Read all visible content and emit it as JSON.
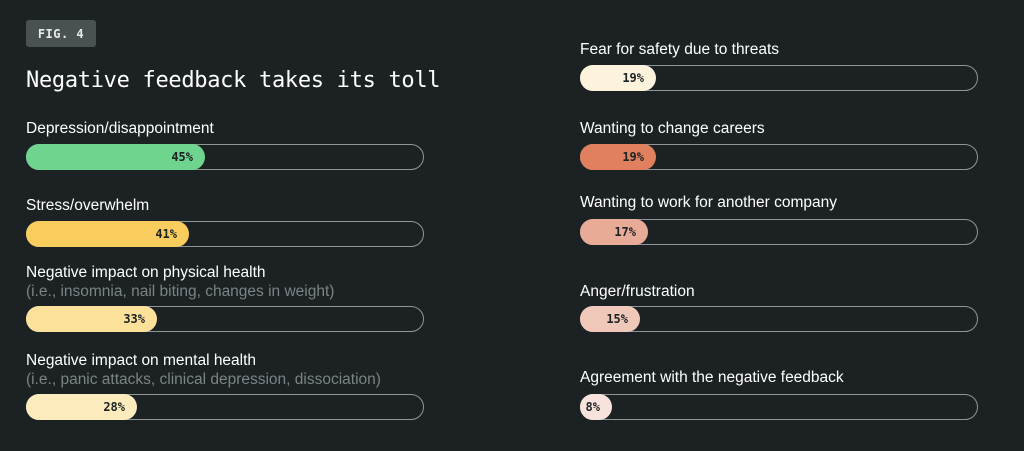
{
  "figure_label": "FIG. 4",
  "chart_data": {
    "type": "bar",
    "title": "Negative feedback takes its toll",
    "xlim": [
      0,
      100
    ],
    "unit": "%",
    "items": [
      {
        "label": "Depression/disappointment",
        "sublabel": "",
        "value": 45,
        "value_label": "45%",
        "color": "#6fd48e"
      },
      {
        "label": "Stress/overwhelm",
        "sublabel": "",
        "value": 41,
        "value_label": "41%",
        "color": "#f8cd5e"
      },
      {
        "label": "Negative impact on physical health",
        "sublabel": "(i.e., insomnia, nail biting, changes in weight)",
        "value": 33,
        "value_label": "33%",
        "color": "#fbe19a"
      },
      {
        "label": "Negative impact on mental health",
        "sublabel": "(i.e., panic attacks, clinical depression, dissociation)",
        "value": 28,
        "value_label": "28%",
        "color": "#fcebbd"
      },
      {
        "label": "Fear for safety due to threats",
        "sublabel": "",
        "value": 19,
        "value_label": "19%",
        "color": "#fdf3dc"
      },
      {
        "label": "Wanting to change careers",
        "sublabel": "",
        "value": 19,
        "value_label": "19%",
        "color": "#e0805f"
      },
      {
        "label": "Wanting to work for another company",
        "sublabel": "",
        "value": 17,
        "value_label": "17%",
        "color": "#e8ab97"
      },
      {
        "label": "Anger/frustration",
        "sublabel": "",
        "value": 15,
        "value_label": "15%",
        "color": "#f0c8ba"
      },
      {
        "label": "Agreement with the negative feedback",
        "sublabel": "",
        "value": 8,
        "value_label": "8%",
        "color": "#f7e3dc"
      }
    ]
  }
}
